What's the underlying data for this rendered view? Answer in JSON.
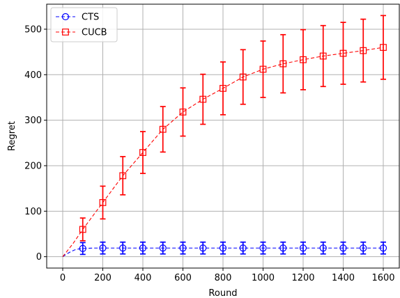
{
  "chart_data": {
    "type": "line",
    "title": "",
    "xlabel": "Round",
    "ylabel": "Regret",
    "xlim": [
      -80,
      1680
    ],
    "ylim": [
      -25,
      555
    ],
    "xticks": [
      0,
      200,
      400,
      600,
      800,
      1000,
      1200,
      1400,
      1600
    ],
    "yticks": [
      0,
      100,
      200,
      300,
      400,
      500
    ],
    "grid": true,
    "legend_position": "top-left",
    "series": [
      {
        "name": "CTS",
        "color": "#0000ff",
        "marker": "circle",
        "linestyle": "dashed",
        "curve": [
          [
            0,
            0
          ],
          [
            20,
            6
          ],
          [
            40,
            11
          ],
          [
            60,
            15
          ],
          [
            80,
            17
          ],
          [
            100,
            18
          ],
          [
            150,
            19
          ],
          [
            200,
            19
          ],
          [
            1600,
            19
          ]
        ],
        "points": [
          {
            "x": 100,
            "y": 18,
            "err": 13
          },
          {
            "x": 200,
            "y": 19,
            "err": 13
          },
          {
            "x": 300,
            "y": 19,
            "err": 13
          },
          {
            "x": 400,
            "y": 19,
            "err": 13
          },
          {
            "x": 500,
            "y": 19,
            "err": 13
          },
          {
            "x": 600,
            "y": 19,
            "err": 13
          },
          {
            "x": 700,
            "y": 19,
            "err": 13
          },
          {
            "x": 800,
            "y": 19,
            "err": 13
          },
          {
            "x": 900,
            "y": 19,
            "err": 13
          },
          {
            "x": 1000,
            "y": 19,
            "err": 13
          },
          {
            "x": 1100,
            "y": 19,
            "err": 13
          },
          {
            "x": 1200,
            "y": 19,
            "err": 13
          },
          {
            "x": 1300,
            "y": 19,
            "err": 13
          },
          {
            "x": 1400,
            "y": 19,
            "err": 13
          },
          {
            "x": 1500,
            "y": 19,
            "err": 13
          },
          {
            "x": 1600,
            "y": 19,
            "err": 13
          }
        ]
      },
      {
        "name": "CUCB",
        "color": "#ff0000",
        "marker": "square",
        "linestyle": "dashed",
        "curve": [
          [
            0,
            0
          ],
          [
            50,
            28
          ],
          [
            100,
            60
          ],
          [
            200,
            119
          ],
          [
            300,
            178
          ],
          [
            400,
            229
          ],
          [
            500,
            280
          ],
          [
            600,
            318
          ],
          [
            700,
            346
          ],
          [
            800,
            370
          ],
          [
            900,
            395
          ],
          [
            1000,
            412
          ],
          [
            1100,
            424
          ],
          [
            1200,
            433
          ],
          [
            1300,
            441
          ],
          [
            1400,
            447
          ],
          [
            1500,
            453
          ],
          [
            1600,
            460
          ]
        ],
        "points": [
          {
            "x": 100,
            "y": 60,
            "err": 25
          },
          {
            "x": 200,
            "y": 119,
            "err": 36
          },
          {
            "x": 300,
            "y": 178,
            "err": 42
          },
          {
            "x": 400,
            "y": 229,
            "err": 46
          },
          {
            "x": 500,
            "y": 280,
            "err": 50
          },
          {
            "x": 600,
            "y": 318,
            "err": 53
          },
          {
            "x": 700,
            "y": 346,
            "err": 55
          },
          {
            "x": 800,
            "y": 370,
            "err": 58
          },
          {
            "x": 900,
            "y": 395,
            "err": 60
          },
          {
            "x": 1000,
            "y": 412,
            "err": 62
          },
          {
            "x": 1100,
            "y": 424,
            "err": 64
          },
          {
            "x": 1200,
            "y": 433,
            "err": 66
          },
          {
            "x": 1300,
            "y": 441,
            "err": 67
          },
          {
            "x": 1400,
            "y": 447,
            "err": 68
          },
          {
            "x": 1500,
            "y": 453,
            "err": 69
          },
          {
            "x": 1600,
            "y": 460,
            "err": 70
          }
        ]
      }
    ]
  }
}
